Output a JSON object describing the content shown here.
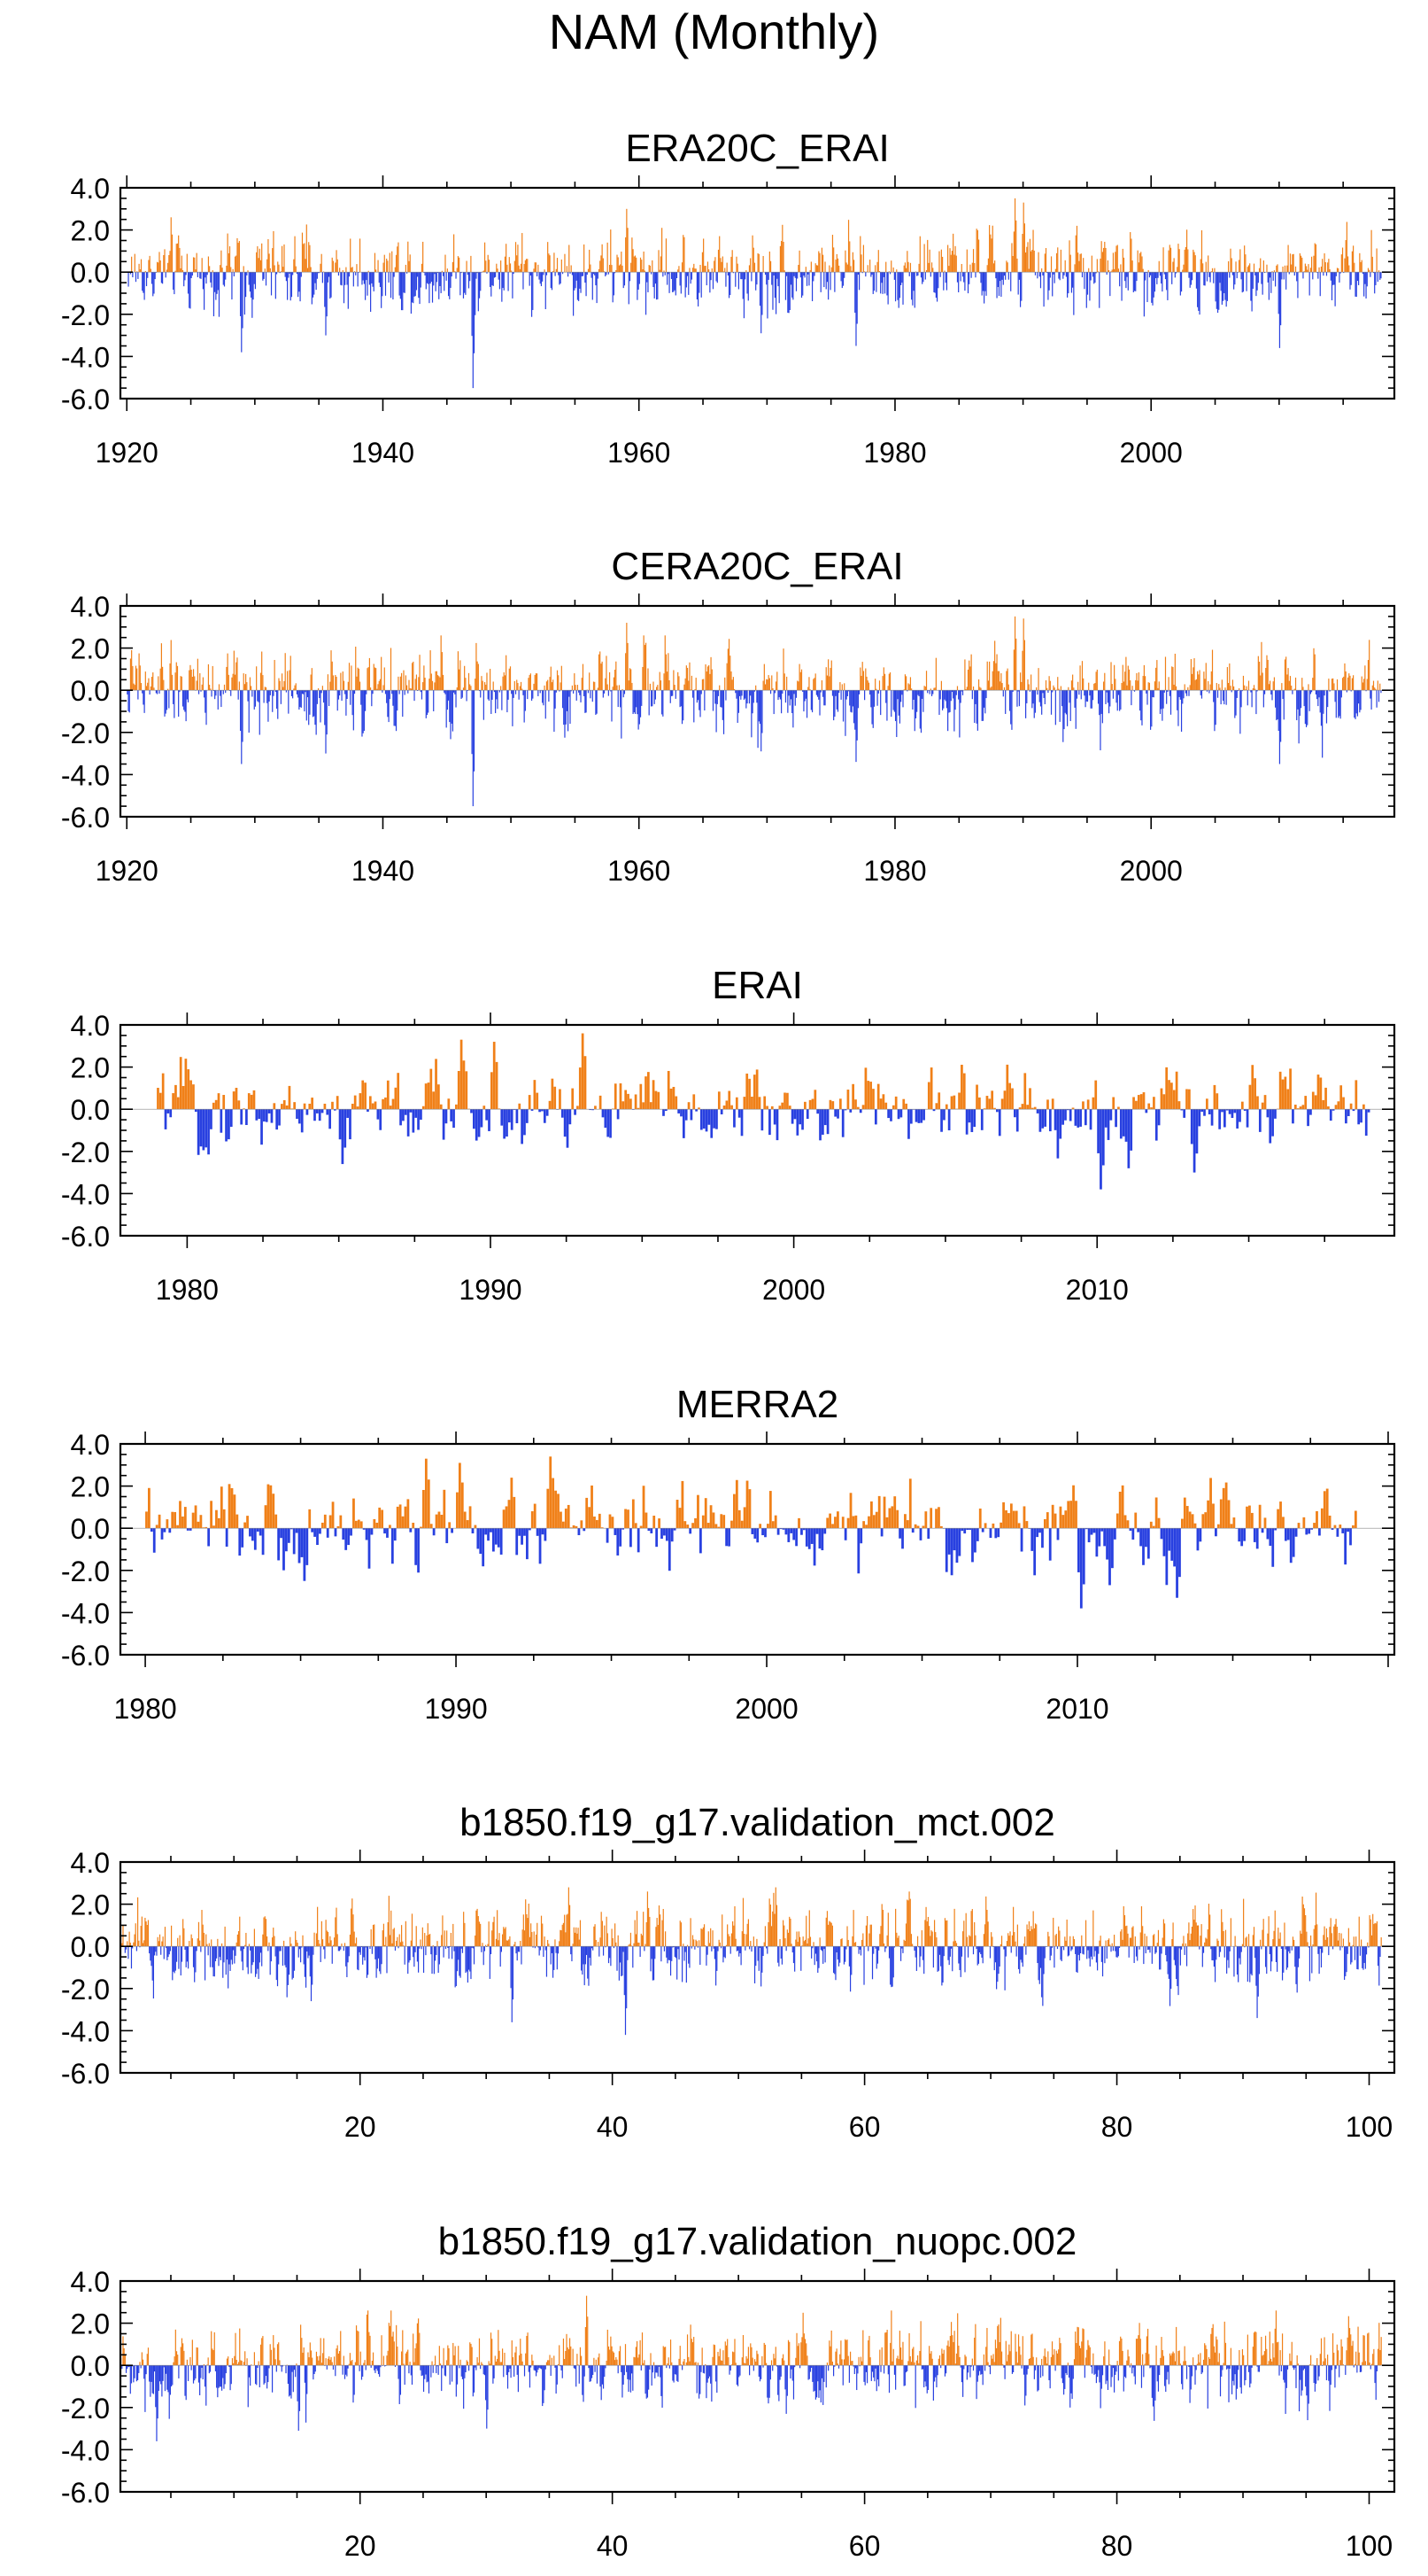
{
  "figure_title": "NAM (Monthly)",
  "colors": {
    "positive": "#f08018",
    "negative": "#2840e0",
    "frame": "#000000"
  },
  "chart_data": [
    {
      "type": "bar",
      "subtype": "monthly-index-bars",
      "title": "ERA20C_ERAI",
      "xlim": [
        1919.5,
        2019
      ],
      "xticks": [
        1920,
        1940,
        1960,
        1980,
        2000
      ],
      "xtick_labels": [
        "1920",
        "1940",
        "1960",
        "1980",
        "2000"
      ],
      "ylim": [
        -6.0,
        4.0
      ],
      "yticks": [
        4.0,
        2.0,
        0.0,
        -2.0,
        -4.0,
        -6.0
      ],
      "ytick_labels": [
        "4.0",
        "2.0",
        "0.0",
        "-2.0",
        "-4.0",
        "-6.0"
      ],
      "xlabel": "",
      "ylabel": "",
      "period": [
        1920,
        2018
      ],
      "notable_values": [
        {
          "x": 1928.9,
          "value": -3.8
        },
        {
          "x": 1935.5,
          "value": -3.0
        },
        {
          "x": 1947.0,
          "value": -5.5
        },
        {
          "x": 1959.0,
          "value": 3.0
        },
        {
          "x": 1969.5,
          "value": -2.9
        },
        {
          "x": 1976.9,
          "value": -3.5
        },
        {
          "x": 1989.3,
          "value": 3.5
        },
        {
          "x": 1990.0,
          "value": 3.3
        },
        {
          "x": 2010.0,
          "value": -3.6
        }
      ]
    },
    {
      "type": "bar",
      "subtype": "monthly-index-bars",
      "title": "CERA20C_ERAI",
      "xlim": [
        1919.5,
        2019
      ],
      "xticks": [
        1920,
        1940,
        1960,
        1980,
        2000
      ],
      "xtick_labels": [
        "1920",
        "1940",
        "1960",
        "1980",
        "2000"
      ],
      "ylim": [
        -6.0,
        4.0
      ],
      "yticks": [
        4.0,
        2.0,
        0.0,
        -2.0,
        -4.0,
        -6.0
      ],
      "ytick_labels": [
        "4.0",
        "2.0",
        "0.0",
        "-2.0",
        "-4.0",
        "-6.0"
      ],
      "xlabel": "",
      "ylabel": "",
      "period": [
        1920,
        2018
      ],
      "notable_values": [
        {
          "x": 1928.9,
          "value": -3.5
        },
        {
          "x": 1935.5,
          "value": -3.0
        },
        {
          "x": 1947.0,
          "value": -5.5
        },
        {
          "x": 1959.0,
          "value": 3.2
        },
        {
          "x": 1969.5,
          "value": -2.9
        },
        {
          "x": 1976.9,
          "value": -3.4
        },
        {
          "x": 1989.3,
          "value": 3.5
        },
        {
          "x": 1990.0,
          "value": 3.4
        },
        {
          "x": 2010.0,
          "value": -3.5
        }
      ]
    },
    {
      "type": "bar",
      "subtype": "monthly-index-bars",
      "title": "ERAI",
      "xlim": [
        1977.8,
        2019.8
      ],
      "xticks": [
        1980,
        1990,
        2000,
        2010
      ],
      "xtick_labels": [
        "1980",
        "1990",
        "2000",
        "2010"
      ],
      "ylim": [
        -6.0,
        4.0
      ],
      "yticks": [
        4.0,
        2.0,
        0.0,
        -2.0,
        -4.0,
        -6.0
      ],
      "ytick_labels": [
        "4.0",
        "2.0",
        "0.0",
        "-2.0",
        "-4.0",
        "-6.0"
      ],
      "xlabel": "",
      "ylabel": "",
      "period": [
        1979,
        2019
      ],
      "notable_values": [
        {
          "x": 1985.1,
          "value": -2.6
        },
        {
          "x": 1989.0,
          "value": 3.3
        },
        {
          "x": 1990.1,
          "value": 3.2
        },
        {
          "x": 1993.0,
          "value": 3.6
        },
        {
          "x": 2010.1,
          "value": -3.8
        },
        {
          "x": 2011.0,
          "value": -2.8
        },
        {
          "x": 2013.2,
          "value": -3.0
        },
        {
          "x": 2015.1,
          "value": 2.1
        }
      ]
    },
    {
      "type": "bar",
      "subtype": "monthly-index-bars",
      "title": "MERRA2",
      "xlim": [
        1979.2,
        2020.2
      ],
      "xticks": [
        1980,
        1990,
        2000,
        2010
      ],
      "xtick_labels": [
        "1980",
        "1990",
        "2000",
        "2010"
      ],
      "ylim": [
        -6.0,
        4.0
      ],
      "yticks": [
        4.0,
        2.0,
        0.0,
        -2.0,
        -4.0,
        -6.0
      ],
      "ytick_labels": [
        "4.0",
        "2.0",
        "0.0",
        "-2.0",
        "-4.0",
        "-6.0"
      ],
      "xlabel": "",
      "ylabel": "",
      "period": [
        1980,
        2019
      ],
      "notable_values": [
        {
          "x": 1985.1,
          "value": -2.5
        },
        {
          "x": 1989.0,
          "value": 3.3
        },
        {
          "x": 1990.1,
          "value": 3.1
        },
        {
          "x": 1993.0,
          "value": 3.4
        },
        {
          "x": 2010.1,
          "value": -3.8
        },
        {
          "x": 2011.0,
          "value": -2.7
        },
        {
          "x": 2013.2,
          "value": -3.3
        }
      ]
    },
    {
      "type": "bar",
      "subtype": "monthly-index-bars",
      "title": "b1850.f19_g17.validation_mct.002",
      "xlim": [
        1,
        102
      ],
      "xticks": [
        20,
        40,
        60,
        80,
        100
      ],
      "xtick_labels": [
        "20",
        "40",
        "60",
        "80",
        "100"
      ],
      "ylim": [
        -6.0,
        4.0
      ],
      "yticks": [
        4.0,
        2.0,
        0.0,
        -2.0,
        -4.0,
        -6.0
      ],
      "ytick_labels": [
        "4.0",
        "2.0",
        "0.0",
        "-2.0",
        "-4.0",
        "-6.0"
      ],
      "xlabel": "",
      "ylabel": "",
      "period": [
        1,
        101
      ],
      "notable_values": [
        {
          "x": 16.1,
          "value": -2.6
        },
        {
          "x": 32.0,
          "value": -3.6
        },
        {
          "x": 36.5,
          "value": 2.8
        },
        {
          "x": 41.0,
          "value": -4.2
        },
        {
          "x": 52.9,
          "value": 2.8
        },
        {
          "x": 91.1,
          "value": -3.4
        }
      ]
    },
    {
      "type": "bar",
      "subtype": "monthly-index-bars",
      "title": "b1850.f19_g17.validation_nuopc.002",
      "xlim": [
        1,
        102
      ],
      "xticks": [
        20,
        40,
        60,
        80,
        100
      ],
      "xtick_labels": [
        "20",
        "40",
        "60",
        "80",
        "100"
      ],
      "ylim": [
        -6.0,
        4.0
      ],
      "yticks": [
        4.0,
        2.0,
        0.0,
        -2.0,
        -4.0,
        -6.0
      ],
      "ytick_labels": [
        "4.0",
        "2.0",
        "0.0",
        "-2.0",
        "-4.0",
        "-6.0"
      ],
      "xlabel": "",
      "ylabel": "",
      "period": [
        1,
        101
      ],
      "notable_values": [
        {
          "x": 3.8,
          "value": -3.6
        },
        {
          "x": 15.1,
          "value": -3.1
        },
        {
          "x": 30.0,
          "value": -3.0
        },
        {
          "x": 37.9,
          "value": 3.3
        },
        {
          "x": 95.1,
          "value": -2.6
        }
      ]
    }
  ]
}
